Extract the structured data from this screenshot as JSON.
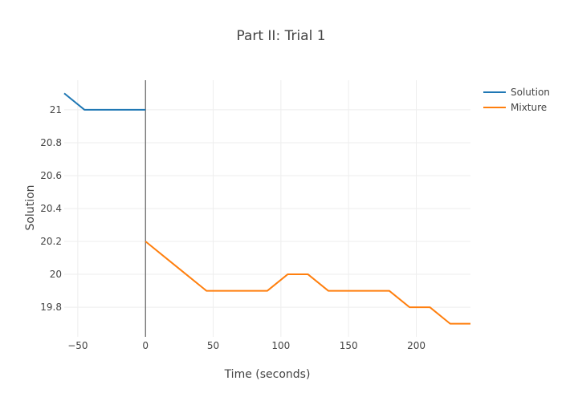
{
  "chart_data": {
    "type": "line",
    "title": "Part II: Trial 1",
    "xlabel": "Time (seconds)",
    "ylabel": "Solution",
    "xlim": [
      -60,
      240
    ],
    "ylim": [
      19.62,
      21.18
    ],
    "x_ticks": [
      -50,
      0,
      50,
      100,
      150,
      200
    ],
    "x_tick_labels": [
      "−50",
      "0",
      "50",
      "100",
      "150",
      "200"
    ],
    "y_ticks": [
      19.8,
      20,
      20.2,
      20.4,
      20.6,
      20.8,
      21
    ],
    "y_tick_labels": [
      "19.8",
      "20",
      "20.2",
      "20.4",
      "20.6",
      "20.8",
      "21"
    ],
    "grid": true,
    "legend_position": "top-right",
    "zero_line_x": 0,
    "series": [
      {
        "name": "Solution",
        "color": "#1f77b4",
        "x": [
          -60,
          -45,
          -30,
          -15,
          0
        ],
        "y": [
          21.1,
          21.0,
          21.0,
          21.0,
          21.0
        ]
      },
      {
        "name": "Mixture",
        "color": "#ff7f0e",
        "x": [
          0,
          15,
          30,
          45,
          60,
          75,
          90,
          105,
          120,
          135,
          150,
          165,
          180,
          195,
          210,
          225,
          240
        ],
        "y": [
          20.2,
          20.1,
          20.0,
          19.9,
          19.9,
          19.9,
          19.9,
          20.0,
          20.0,
          19.9,
          19.9,
          19.9,
          19.9,
          19.8,
          19.8,
          19.7,
          19.7
        ]
      }
    ]
  }
}
